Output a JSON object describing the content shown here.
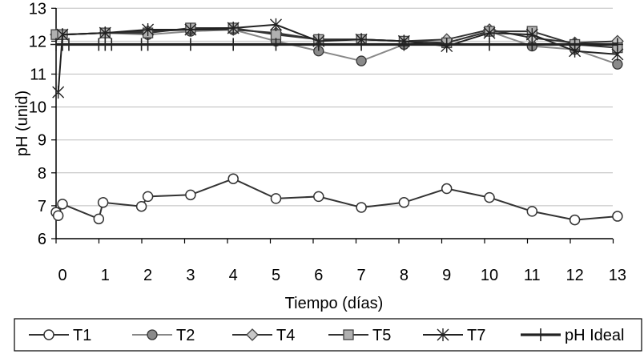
{
  "chart_data": {
    "type": "line",
    "title": "",
    "xlabel": "Tiempo (días)",
    "ylabel": "pH (unid)",
    "xlim": [
      0,
      13
    ],
    "ylim": [
      6,
      13
    ],
    "x_ticks": [
      0,
      1,
      2,
      3,
      4,
      5,
      6,
      7,
      8,
      9,
      10,
      11,
      12,
      13
    ],
    "y_ticks": [
      6,
      7,
      8,
      9,
      10,
      11,
      12,
      13
    ],
    "grid": "horizontal",
    "legend_position": "bottom",
    "series": [
      {
        "name": "T1",
        "color": "#333333",
        "marker": "circle-open",
        "x": [
          -0.15,
          -0.1,
          0,
          0.85,
          0.95,
          1.85,
          2.0,
          3.0,
          4.0,
          5.0,
          6.0,
          7.0,
          8.0,
          9.0,
          10.0,
          11.0,
          12.0,
          13.0
        ],
        "y": [
          6.8,
          6.7,
          7.05,
          6.6,
          7.1,
          6.98,
          7.28,
          7.33,
          7.82,
          7.22,
          7.28,
          6.95,
          7.1,
          7.52,
          7.25,
          6.83,
          6.57,
          6.68
        ]
      },
      {
        "name": "T2",
        "color": "#888888",
        "marker": "circle-filled",
        "x": [
          -0.15,
          0,
          1,
          2,
          3,
          4,
          5,
          6,
          7,
          8,
          9,
          10,
          11,
          12,
          13
        ],
        "y": [
          12.2,
          12.2,
          12.25,
          12.2,
          12.3,
          12.35,
          12.0,
          11.7,
          11.4,
          11.9,
          11.95,
          12.3,
          11.85,
          11.75,
          11.3
        ]
      },
      {
        "name": "T4",
        "color": "#333333",
        "marker": "diamond",
        "x": [
          -0.15,
          0,
          1,
          2,
          3,
          4,
          5,
          6,
          7,
          8,
          9,
          10,
          11,
          12,
          13
        ],
        "y": [
          12.2,
          12.2,
          12.25,
          12.3,
          12.35,
          12.35,
          12.25,
          12.05,
          12.05,
          12.0,
          12.05,
          12.35,
          12.1,
          11.95,
          12.0
        ]
      },
      {
        "name": "T5",
        "color": "#333333",
        "marker": "square",
        "x": [
          -0.15,
          0,
          1,
          2,
          3,
          4,
          5,
          6,
          7,
          8,
          9,
          10,
          11,
          12,
          13
        ],
        "y": [
          12.2,
          12.2,
          12.25,
          12.25,
          12.4,
          12.4,
          12.2,
          12.05,
          12.05,
          12.0,
          11.95,
          12.3,
          12.3,
          11.9,
          11.8
        ]
      },
      {
        "name": "T7",
        "color": "#222222",
        "marker": "star",
        "x": [
          -0.1,
          0,
          1,
          2,
          3,
          4,
          5,
          6,
          7,
          8,
          9,
          10,
          11,
          12,
          13
        ],
        "y": [
          10.45,
          12.2,
          12.25,
          12.35,
          12.35,
          12.4,
          12.5,
          12.0,
          12.05,
          12.0,
          11.85,
          12.25,
          12.2,
          11.7,
          11.6
        ]
      },
      {
        "name": "pH Ideal",
        "color": "#222222",
        "marker": "plus",
        "x": [
          -0.15,
          0,
          0.15,
          0.85,
          1,
          1.15,
          1.85,
          2,
          3,
          4,
          5,
          6,
          7,
          8,
          9,
          10,
          11,
          12,
          13
        ],
        "y": [
          11.9,
          11.9,
          11.9,
          11.9,
          11.9,
          11.9,
          11.9,
          11.9,
          11.9,
          11.9,
          11.9,
          11.9,
          11.9,
          11.9,
          11.9,
          11.9,
          11.9,
          11.9,
          11.9
        ]
      }
    ]
  }
}
